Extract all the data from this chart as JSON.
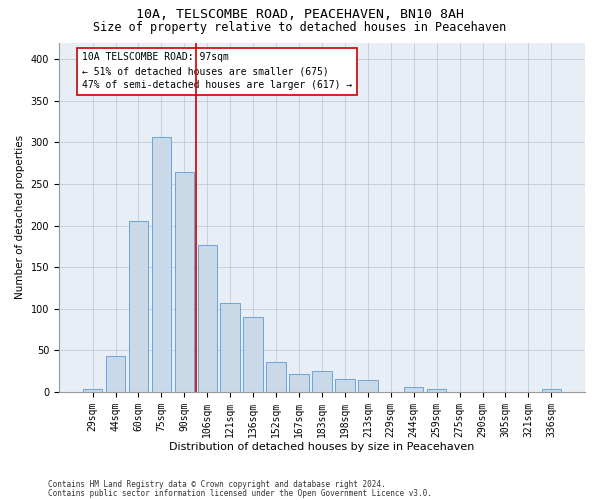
{
  "title": "10A, TELSCOMBE ROAD, PEACEHAVEN, BN10 8AH",
  "subtitle": "Size of property relative to detached houses in Peacehaven",
  "xlabel": "Distribution of detached houses by size in Peacehaven",
  "ylabel": "Number of detached properties",
  "categories": [
    "29sqm",
    "44sqm",
    "60sqm",
    "75sqm",
    "90sqm",
    "106sqm",
    "121sqm",
    "136sqm",
    "152sqm",
    "167sqm",
    "183sqm",
    "198sqm",
    "213sqm",
    "229sqm",
    "244sqm",
    "259sqm",
    "275sqm",
    "290sqm",
    "305sqm",
    "321sqm",
    "336sqm"
  ],
  "values": [
    4,
    43,
    205,
    307,
    264,
    177,
    107,
    90,
    36,
    21,
    25,
    15,
    14,
    0,
    6,
    4,
    0,
    0,
    0,
    0,
    4
  ],
  "bar_color": "#c9d9e8",
  "bar_edge_color": "#5b9bd5",
  "vline_x": 4.5,
  "vline_color": "#cc0000",
  "annotation_text": "10A TELSCOMBE ROAD: 97sqm\n← 51% of detached houses are smaller (675)\n47% of semi-detached houses are larger (617) →",
  "annotation_box_color": "#ffffff",
  "annotation_box_edge": "#cc0000",
  "ylim": [
    0,
    420
  ],
  "yticks": [
    0,
    50,
    100,
    150,
    200,
    250,
    300,
    350,
    400
  ],
  "footnote1": "Contains HM Land Registry data © Crown copyright and database right 2024.",
  "footnote2": "Contains public sector information licensed under the Open Government Licence v3.0.",
  "plot_bg_color": "#e8eef5",
  "title_fontsize": 9.5,
  "subtitle_fontsize": 8.5,
  "xlabel_fontsize": 8,
  "ylabel_fontsize": 7.5,
  "tick_fontsize": 7,
  "annot_fontsize": 7,
  "footnote_fontsize": 5.5
}
